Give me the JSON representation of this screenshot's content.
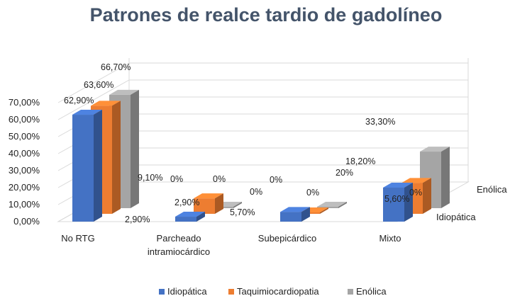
{
  "chart_data": {
    "type": "bar",
    "title": "Patrones de realce tardio de gadolíneo",
    "xlabel": "",
    "ylabel": "",
    "ylim": [
      0,
      70
    ],
    "ytick_labels": [
      "0,00%",
      "10,00%",
      "20,00%",
      "30,00%",
      "40,00%",
      "50,00%",
      "60,00%",
      "70,00%"
    ],
    "categories": [
      {
        "line1": "No RTG",
        "line2": ""
      },
      {
        "line1": "Parcheado",
        "line2": "intramiocárdico"
      },
      {
        "line1": "Subepicárdico",
        "line2": ""
      },
      {
        "line1": "Mixto",
        "line2": ""
      }
    ],
    "depth_labels": [
      "Idiopática",
      "Enólica"
    ],
    "series": [
      {
        "name": "Idiopática",
        "color": "#4472c4",
        "values": [
          62.9,
          2.9,
          5.7,
          20.0
        ],
        "labels": [
          "62,90%",
          "2,90%",
          "5,70%",
          "20%"
        ]
      },
      {
        "name": "Taquimiocardiopatia",
        "color": "#ed7d31",
        "values": [
          63.6,
          9.1,
          0,
          18.2
        ],
        "labels": [
          "63,60%",
          "9,10%",
          "0%",
          "18,20%"
        ]
      },
      {
        "name": "Enólica",
        "color": "#a5a5a5",
        "values": [
          66.7,
          0,
          0,
          33.3
        ],
        "labels": [
          "66,70%",
          "0%",
          "0%",
          "33,30%"
        ]
      }
    ],
    "extra_labels": [
      "2,90%",
      "0%",
      "0%",
      "5,60%",
      "0%"
    ],
    "grid": true,
    "legend": "bottom"
  }
}
